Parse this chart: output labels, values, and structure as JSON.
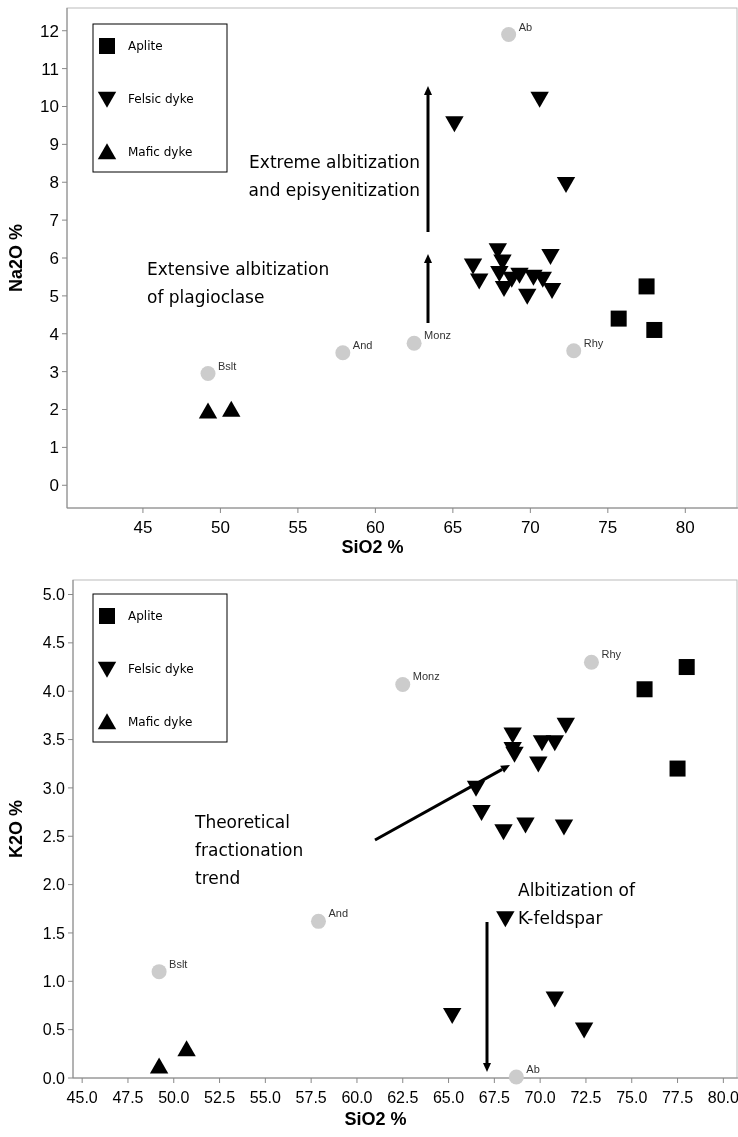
{
  "chart_data": [
    {
      "type": "scatter",
      "xlabel": "SiO2 %",
      "ylabel": "Na2O %",
      "xlim": [
        40.1,
        83.4
      ],
      "ylim": [
        -0.6,
        12.6
      ],
      "xticks": [
        45,
        50,
        55,
        60,
        65,
        70,
        75,
        80
      ],
      "yticks": [
        0,
        1,
        2,
        3,
        4,
        5,
        6,
        7,
        8,
        9,
        10,
        11,
        12
      ],
      "grid": false,
      "legend": "top left",
      "series": [
        {
          "name": "Aplite",
          "color": "#000000",
          "marker": "square",
          "x": [
            75.7,
            77.5,
            78.0
          ],
          "values": [
            4.4,
            5.25,
            4.1
          ]
        },
        {
          "name": "Felsic dyke",
          "color": "#000000",
          "marker": "triangle-down",
          "x": [
            65.1,
            70.6,
            72.3,
            66.3,
            66.7,
            67.9,
            68.2,
            68.0,
            68.3,
            68.8,
            69.3,
            69.8,
            70.2,
            70.8,
            71.3,
            71.4
          ],
          "values": [
            9.55,
            10.2,
            7.95,
            5.8,
            5.4,
            6.2,
            5.9,
            5.6,
            5.2,
            5.45,
            5.55,
            5.0,
            5.5,
            5.45,
            6.05,
            5.15
          ]
        },
        {
          "name": "Mafic dyke",
          "color": "#000000",
          "marker": "triangle",
          "x": [
            49.2,
            50.7
          ],
          "values": [
            1.95,
            2.0
          ]
        },
        {
          "color": "#cccccc",
          "marker": "circle",
          "x": [
            68.6,
            49.2,
            57.9,
            62.5,
            72.8
          ],
          "values": [
            11.9,
            2.95,
            3.5,
            3.75,
            3.55
          ]
        }
      ],
      "annotations": [
        {
          "text": "Ab",
          "x": 68.6,
          "y": 11.9
        },
        {
          "text": "Bslt",
          "x": 49.2,
          "y": 2.95
        },
        {
          "text": "And",
          "x": 57.9,
          "y": 3.5
        },
        {
          "text": "Monz",
          "x": 62.5,
          "y": 3.75
        },
        {
          "text": "Rhy",
          "x": 72.8,
          "y": 3.55
        },
        "Extreme albitization\nand episyenitization",
        "Extensive albitization\nof plagioclase"
      ]
    },
    {
      "type": "scatter",
      "xlabel": "SiO2 %",
      "ylabel": "K2O %",
      "xlim": [
        44.5,
        80.8
      ],
      "ylim": [
        0,
        5.15
      ],
      "xticks": [
        {
          "value": 45,
          "label": "45.0"
        },
        47.5,
        {
          "value": 50,
          "label": "50.0"
        },
        52.5,
        {
          "value": 55,
          "label": "55.0"
        },
        57.5,
        {
          "value": 60,
          "label": "60.0"
        },
        62.5,
        {
          "value": 65,
          "label": "65.0"
        },
        67.5,
        {
          "value": 70,
          "label": "70.0"
        },
        72.5,
        {
          "value": 75,
          "label": "75.0"
        },
        77.5,
        {
          "value": 80,
          "label": "80.0"
        }
      ],
      "yticks": [
        {
          "value": 0,
          "label": "0.0"
        },
        0.5,
        {
          "value": 1,
          "label": "1.0"
        },
        1.5,
        {
          "value": 2,
          "label": "2.0"
        },
        2.5,
        {
          "value": 3,
          "label": "3.0"
        },
        3.5,
        {
          "value": 4,
          "label": "4.0"
        },
        4.5,
        {
          "value": 5,
          "label": "5.0"
        }
      ],
      "grid": false,
      "legend": "top left",
      "series": [
        {
          "name": "Aplite",
          "color": "#000000",
          "marker": "square",
          "x": [
            75.7,
            78.0,
            77.5
          ],
          "values": [
            4.02,
            4.25,
            3.2
          ]
        },
        {
          "name": "Felsic dyke",
          "color": "#000000",
          "marker": "triangle-down",
          "x": [
            66.5,
            66.8,
            68.0,
            68.5,
            68.5,
            68.6,
            69.2,
            69.9,
            70.1,
            70.8,
            71.4,
            71.3,
            68.1,
            65.2,
            70.8,
            72.4
          ],
          "values": [
            3.0,
            2.75,
            2.55,
            3.55,
            3.4,
            3.35,
            2.62,
            3.25,
            3.47,
            3.47,
            3.65,
            2.6,
            1.65,
            0.65,
            0.82,
            0.5
          ]
        },
        {
          "name": "Mafic dyke",
          "color": "#000000",
          "marker": "triangle",
          "x": [
            49.2,
            50.7
          ],
          "values": [
            0.12,
            0.3
          ]
        },
        {
          "color": "#cccccc",
          "marker": "circle",
          "x": [
            62.5,
            72.8,
            57.9,
            49.2,
            68.7
          ],
          "values": [
            4.07,
            4.3,
            1.62,
            1.1,
            0.01
          ]
        }
      ],
      "annotations": [
        {
          "text": "Monz",
          "x": 62.5,
          "y": 4.07
        },
        {
          "text": "Rhy",
          "x": 72.8,
          "y": 4.3
        },
        {
          "text": "And",
          "x": 57.9,
          "y": 1.62
        },
        {
          "text": "Bslt",
          "x": 49.2,
          "y": 1.1
        },
        {
          "text": "Ab",
          "x": 68.7,
          "y": 0.01
        },
        "Theoretical\nfractionation\ntrend",
        "Albitization of\nK-feldspar"
      ]
    }
  ]
}
